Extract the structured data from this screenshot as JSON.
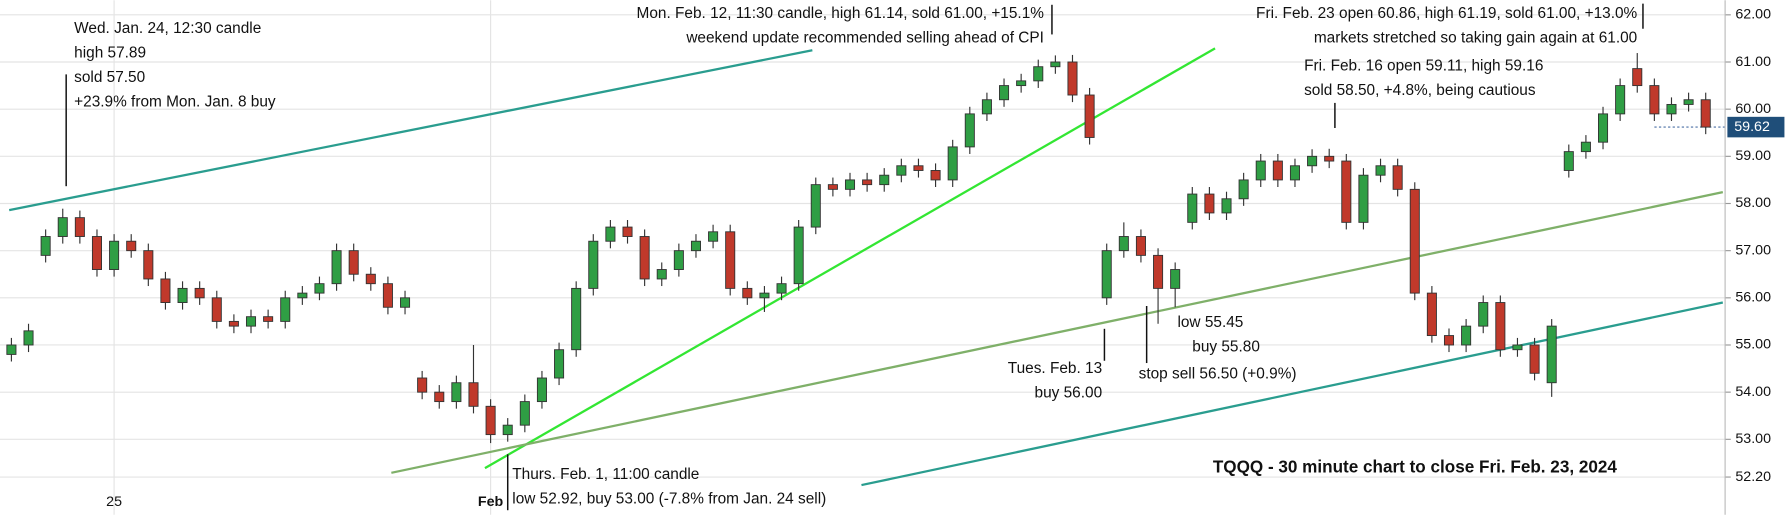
{
  "chart_data": {
    "type": "candlestick",
    "title": "TQQQ - 30 minute chart to close Fri. Feb. 23, 2024",
    "categories": [
      null,
      null,
      null,
      null,
      null,
      null,
      "25",
      null,
      null,
      null,
      null,
      null,
      null,
      null,
      null,
      null,
      null,
      null,
      null,
      null,
      null,
      null,
      null,
      null,
      null,
      null,
      null,
      null,
      "Feb",
      null,
      null,
      null,
      null,
      null,
      null,
      null,
      null,
      null,
      null,
      null,
      null,
      null,
      null,
      null,
      null,
      null,
      null,
      null,
      null,
      null,
      null,
      null,
      null,
      null,
      null,
      null,
      null,
      null,
      null,
      null,
      null,
      null,
      null,
      null,
      null,
      null,
      null,
      null,
      null,
      null,
      null,
      null,
      null,
      null,
      null,
      null,
      null,
      null,
      null,
      null,
      null,
      null,
      null,
      null,
      null,
      null,
      null,
      null,
      null,
      null,
      null,
      null,
      null,
      null,
      null,
      null,
      null,
      null,
      null,
      null
    ],
    "open": [
      54.8,
      55.0,
      56.9,
      57.3,
      57.7,
      57.3,
      56.6,
      57.2,
      57.0,
      56.4,
      55.9,
      56.2,
      56.0,
      55.5,
      55.4,
      55.6,
      55.5,
      56.0,
      56.1,
      56.3,
      57.0,
      56.5,
      56.3,
      55.8,
      54.3,
      54.0,
      53.8,
      54.2,
      53.7,
      53.1,
      53.3,
      53.8,
      54.3,
      54.9,
      56.2,
      57.2,
      57.5,
      57.3,
      56.4,
      56.6,
      57.0,
      57.2,
      57.4,
      56.2,
      56.0,
      56.1,
      56.3,
      57.5,
      58.4,
      58.3,
      58.5,
      58.4,
      58.6,
      58.8,
      58.7,
      58.5,
      59.2,
      59.9,
      60.2,
      60.5,
      60.6,
      60.9,
      61.0,
      60.3,
      56.0,
      57.0,
      57.3,
      56.9,
      56.2,
      57.6,
      58.2,
      57.8,
      58.1,
      58.5,
      58.9,
      58.5,
      58.8,
      59.0,
      58.9,
      57.6,
      58.6,
      58.8,
      58.3,
      56.1,
      55.2,
      55.0,
      55.4,
      55.9,
      54.9,
      55.0,
      54.2,
      58.7,
      59.1,
      59.3,
      59.9,
      60.86,
      60.5,
      59.9,
      60.1,
      60.2
    ],
    "high": [
      55.15,
      55.45,
      57.45,
      57.89,
      57.85,
      57.45,
      57.35,
      57.35,
      57.15,
      56.55,
      56.35,
      56.35,
      56.15,
      55.65,
      55.75,
      55.75,
      56.15,
      56.25,
      56.45,
      57.15,
      57.15,
      56.65,
      56.45,
      56.15,
      54.45,
      54.15,
      54.35,
      55.0,
      53.85,
      53.45,
      53.95,
      54.45,
      55.05,
      56.35,
      57.35,
      57.65,
      57.65,
      57.45,
      56.75,
      57.15,
      57.35,
      57.55,
      57.55,
      56.35,
      56.25,
      56.45,
      57.65,
      58.55,
      58.55,
      58.65,
      58.65,
      58.75,
      58.95,
      58.95,
      58.85,
      59.35,
      60.05,
      60.35,
      60.65,
      60.75,
      61.05,
      61.14,
      61.15,
      60.45,
      57.15,
      57.6,
      57.45,
      57.05,
      56.75,
      58.35,
      58.35,
      58.25,
      58.65,
      59.05,
      59.05,
      58.95,
      59.15,
      59.16,
      59.05,
      58.75,
      58.95,
      58.95,
      58.45,
      56.25,
      55.35,
      55.55,
      56.05,
      56.05,
      55.15,
      55.15,
      55.55,
      59.25,
      59.45,
      60.05,
      60.65,
      61.19,
      60.65,
      60.25,
      60.35,
      60.35
    ],
    "low": [
      54.65,
      54.85,
      56.75,
      57.15,
      57.15,
      56.45,
      56.45,
      56.85,
      56.25,
      55.75,
      55.75,
      55.85,
      55.35,
      55.25,
      55.25,
      55.35,
      55.35,
      55.85,
      55.95,
      56.15,
      56.35,
      56.15,
      55.65,
      55.65,
      53.85,
      53.65,
      53.65,
      53.55,
      52.92,
      52.95,
      53.15,
      53.65,
      54.15,
      54.75,
      56.05,
      57.05,
      57.15,
      56.25,
      56.25,
      56.45,
      56.85,
      57.05,
      56.05,
      55.85,
      55.7,
      55.95,
      56.15,
      57.35,
      58.15,
      58.15,
      58.25,
      58.25,
      58.45,
      58.55,
      58.35,
      58.35,
      59.05,
      59.75,
      60.05,
      60.35,
      60.45,
      60.75,
      60.15,
      59.25,
      55.85,
      56.85,
      56.75,
      55.45,
      55.8,
      57.45,
      57.65,
      57.65,
      57.95,
      58.35,
      58.35,
      58.35,
      58.65,
      58.75,
      57.45,
      57.45,
      58.45,
      58.15,
      55.95,
      55.05,
      54.85,
      54.85,
      55.25,
      54.75,
      54.75,
      54.25,
      53.9,
      58.55,
      58.95,
      59.15,
      59.75,
      60.35,
      59.75,
      59.75,
      59.95,
      59.47
    ],
    "close": [
      55.0,
      55.3,
      57.3,
      57.7,
      57.3,
      56.6,
      57.2,
      57.0,
      56.4,
      55.9,
      56.2,
      56.0,
      55.5,
      55.4,
      55.6,
      55.5,
      56.0,
      56.1,
      56.3,
      57.0,
      56.5,
      56.3,
      55.8,
      56.0,
      54.0,
      53.8,
      54.2,
      53.7,
      53.1,
      53.3,
      53.8,
      54.3,
      54.9,
      56.2,
      57.2,
      57.5,
      57.3,
      56.4,
      56.6,
      57.0,
      57.2,
      57.4,
      56.2,
      56.0,
      56.1,
      56.3,
      57.5,
      58.4,
      58.3,
      58.5,
      58.4,
      58.6,
      58.8,
      58.7,
      58.5,
      59.2,
      59.9,
      60.2,
      60.5,
      60.6,
      60.9,
      61.0,
      60.3,
      59.4,
      57.0,
      57.3,
      56.9,
      56.2,
      56.6,
      58.2,
      57.8,
      58.1,
      58.5,
      58.9,
      58.5,
      58.8,
      59.0,
      58.9,
      57.6,
      58.6,
      58.8,
      58.3,
      56.1,
      55.2,
      55.0,
      55.4,
      55.9,
      54.9,
      55.0,
      54.4,
      55.4,
      59.1,
      59.3,
      59.9,
      60.5,
      60.5,
      59.9,
      60.1,
      60.2,
      59.62
    ],
    "up_color": "#2f9e44",
    "down_color": "#c0392b",
    "ylim": [
      51.4,
      62.31
    ],
    "yticks": [
      {
        "value": 52.2,
        "label": "52.20"
      },
      {
        "value": 53,
        "label": "53.00"
      },
      {
        "value": 54,
        "label": "54.00"
      },
      {
        "value": 55,
        "label": "55.00"
      },
      {
        "value": 56,
        "label": "56.00"
      },
      {
        "value": 57,
        "label": "57.00"
      },
      {
        "value": 58,
        "label": "58.00"
      },
      {
        "value": 59,
        "label": "59.00"
      },
      {
        "value": 60,
        "label": "60.00"
      },
      {
        "value": 61,
        "label": "61.00"
      },
      {
        "value": 62,
        "label": "62.00"
      }
    ],
    "grid": true,
    "last_price": {
      "value": 59.62,
      "label": "59.62"
    },
    "trendlines": [
      {
        "color": "#2a9d8f",
        "x": [
          -0.13,
          46.8
        ],
        "y": [
          57.86,
          61.25
        ]
      },
      {
        "color": "#33e633",
        "x": [
          27.67,
          70.33
        ],
        "y": [
          52.39,
          61.29
        ]
      },
      {
        "color": "#7fb069",
        "x": [
          22.2,
          100.0
        ],
        "y": [
          52.29,
          58.24
        ]
      },
      {
        "color": "#2a9d8f",
        "x": [
          49.67,
          100.0
        ],
        "y": [
          52.03,
          55.9
        ]
      }
    ],
    "annotations": [
      {
        "lines": [
          "Wed. Jan. 24, 12:30 candle",
          "high 57.89",
          "sold 57.50",
          "+23.9% from Mon. Jan. 8 buy"
        ]
      },
      {
        "lines": [
          "Mon. Feb. 12, 11:30 candle, high 61.14, sold 61.00, +15.1%",
          "weekend update recommended selling ahead of CPI"
        ]
      },
      {
        "lines": [
          "Fri. Feb. 23 open 60.86, high 61.19, sold 61.00, +13.0%",
          "markets stretched so taking gain again at 61.00"
        ]
      },
      {
        "lines": [
          "Fri. Feb. 16 open 59.11, high 59.16",
          "sold 58.50, +4.8%, being cautious"
        ]
      },
      {
        "lines": [
          "Tues. Feb. 13",
          "buy 56.00"
        ]
      },
      {
        "lines": [
          "low 55.45",
          "buy 55.80"
        ]
      },
      {
        "lines": [
          "stop sell 56.50 (+0.9%)"
        ]
      },
      {
        "lines": [
          "Thurs. Feb. 1, 11:00 candle",
          "low 52.92, buy 53.00 (-7.8% from Jan. 24 sell)"
        ]
      }
    ]
  }
}
